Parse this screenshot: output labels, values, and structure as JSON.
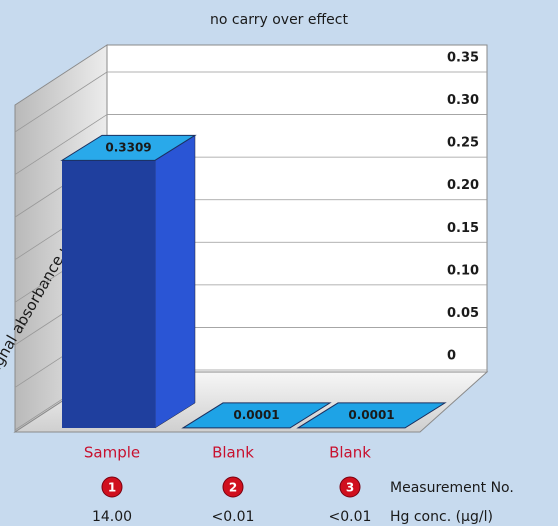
{
  "chart_data": {
    "type": "bar3d",
    "title": "no carry over effect",
    "y_label": "signal absorbance units",
    "categories": [
      "Sample",
      "Blank",
      "Blank"
    ],
    "values": [
      0.3309,
      0.0001,
      0.0001
    ],
    "ylim": [
      0,
      0.35
    ],
    "yticks": [
      0,
      0.05,
      {
        "value": 0.1,
        "label": "0.10"
      },
      0.15,
      {
        "value": 0.2,
        "label": "0.20"
      },
      0.25,
      {
        "value": 0.3,
        "label": "0.30"
      },
      0.35
    ],
    "grid": true,
    "colors": [
      "#1f3f9e",
      "#1ea3e6",
      "#1ea3e6"
    ],
    "measurement_numbers": [
      1,
      2,
      3
    ],
    "measurement_label": "Measurement No.",
    "hg_conc": [
      "14.00",
      "<0.01",
      "<0.01"
    ],
    "hg_label": "Hg conc. (μg/l)"
  }
}
